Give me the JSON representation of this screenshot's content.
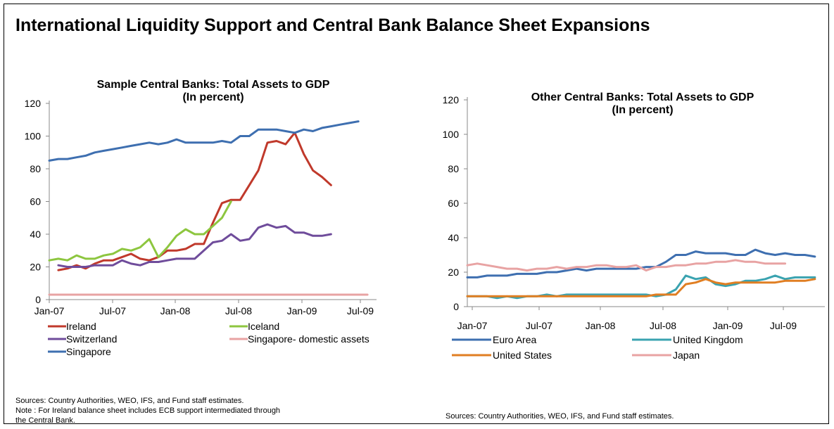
{
  "title": "International Liquidity Support and Central Bank Balance Sheet Expansions",
  "charts": {
    "left": {
      "sources": "Sources: Country Authorities, WEO, IFS, and Fund staff estimates.",
      "note": "Note : For Ireland balance sheet includes ECB support intermediated through\nthe Central Bank."
    },
    "right": {
      "sources": "Sources: Country Authorities, WEO, IFS, and Fund staff estimates."
    }
  },
  "chart_data": [
    {
      "type": "line",
      "title": "Sample Central Banks: Total Assets to GDP",
      "subtitle": "(In percent)",
      "ylim": [
        0,
        120
      ],
      "yticks": [
        0,
        20,
        40,
        60,
        80,
        100,
        120
      ],
      "xticks": [
        "Jan-07",
        "Jul-07",
        "Jan-08",
        "Jul-08",
        "Jan-09",
        "Jul-09"
      ],
      "grid": false,
      "legend_position": "bottom",
      "x_note": "Monthly observations, index 0 = Jan-07",
      "series": [
        {
          "name": "Ireland",
          "color": "#C0392B",
          "start": 1,
          "values": [
            18,
            19,
            21,
            19,
            22,
            24,
            24,
            26,
            28,
            25,
            24,
            26,
            30,
            30,
            31,
            34,
            34,
            47,
            59,
            61,
            61,
            70,
            79,
            96,
            97,
            95,
            102,
            89,
            79,
            75,
            70
          ]
        },
        {
          "name": "Iceland",
          "color": "#8DC63F",
          "start": 0,
          "values": [
            24,
            25,
            24,
            27,
            25,
            25,
            27,
            28,
            31,
            30,
            32,
            37,
            26,
            32,
            39,
            43,
            40,
            40,
            45,
            50,
            60
          ]
        },
        {
          "name": "Switzerland",
          "color": "#6F4C9B",
          "start": 1,
          "values": [
            21,
            20,
            20,
            20,
            21,
            21,
            21,
            24,
            22,
            21,
            23,
            23,
            24,
            25,
            25,
            25,
            30,
            35,
            36,
            40,
            36,
            37,
            44,
            46,
            44,
            45,
            41,
            41,
            39,
            39,
            40
          ]
        },
        {
          "name": "Singapore- domestic assets",
          "color": "#E8A3A3",
          "start": 0,
          "values": [
            3,
            3,
            3,
            3,
            3,
            3,
            3,
            3,
            3,
            3,
            3,
            3,
            3,
            3,
            3,
            3,
            3,
            3,
            3,
            3,
            3,
            3,
            3,
            3,
            3,
            3,
            3,
            3,
            3,
            3,
            3,
            3,
            3,
            3,
            3,
            3
          ]
        },
        {
          "name": "Singapore",
          "color": "#3E6FB0",
          "start": 0,
          "values": [
            85,
            86,
            86,
            87,
            88,
            90,
            91,
            92,
            93,
            94,
            95,
            96,
            95,
            96,
            98,
            96,
            96,
            96,
            96,
            97,
            96,
            100,
            100,
            104,
            104,
            104,
            103,
            102,
            104,
            103,
            105,
            106,
            107,
            108,
            109
          ]
        }
      ]
    },
    {
      "type": "line",
      "title": "Other Central Banks: Total Assets to GDP",
      "subtitle": "(In percent)",
      "ylim": [
        0,
        120
      ],
      "yticks": [
        0,
        20,
        40,
        60,
        80,
        100,
        120
      ],
      "xticks": [
        "Jan-07",
        "Jul-07",
        "Jan-08",
        "Jul-08",
        "Jan-09",
        "Jul-09"
      ],
      "grid": false,
      "legend_position": "bottom",
      "x_note": "Monthly observations, index 0 = Jan-07",
      "series": [
        {
          "name": "Euro Area",
          "color": "#3E6FB0",
          "start": 0,
          "values": [
            17,
            17,
            18,
            18,
            18,
            19,
            19,
            19,
            20,
            20,
            21,
            22,
            21,
            22,
            22,
            22,
            22,
            22,
            23,
            23,
            26,
            30,
            30,
            32,
            31,
            31,
            31,
            30,
            30,
            33,
            31,
            30,
            31,
            30,
            30,
            29
          ]
        },
        {
          "name": "United Kingdom",
          "color": "#3AA3B0",
          "start": 0,
          "values": [
            6,
            6,
            6,
            5,
            6,
            5,
            6,
            6,
            7,
            6,
            7,
            7,
            7,
            7,
            7,
            7,
            7,
            7,
            7,
            6,
            7,
            10,
            18,
            16,
            17,
            13,
            12,
            13,
            15,
            15,
            16,
            18,
            16,
            17,
            17,
            17
          ]
        },
        {
          "name": "United States",
          "color": "#E07E22",
          "start": 0,
          "values": [
            6,
            6,
            6,
            6,
            6,
            6,
            6,
            6,
            6,
            6,
            6,
            6,
            6,
            6,
            6,
            6,
            6,
            6,
            6,
            7,
            7,
            7,
            13,
            14,
            16,
            14,
            13,
            14,
            14,
            14,
            14,
            14,
            15,
            15,
            15,
            16
          ]
        },
        {
          "name": "Japan",
          "color": "#E8A3A3",
          "start": 0,
          "values": [
            24,
            25,
            24,
            23,
            22,
            22,
            21,
            22,
            22,
            23,
            22,
            23,
            23,
            24,
            24,
            23,
            23,
            24,
            21,
            23,
            23,
            24,
            24,
            25,
            25,
            26,
            26,
            27,
            26,
            26,
            25,
            25,
            25
          ]
        }
      ]
    }
  ]
}
